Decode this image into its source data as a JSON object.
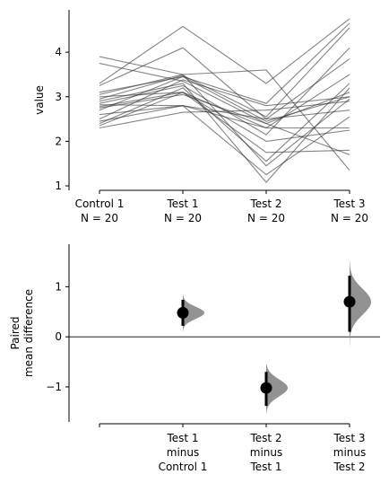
{
  "chart_data": [
    {
      "type": "line",
      "subtype": "paired-slopegraph",
      "ylabel": "value",
      "ylim": [
        0.9,
        4.95
      ],
      "yticks": [
        1,
        2,
        3,
        4
      ],
      "groups": [
        {
          "label": "Control 1",
          "n_label": "N = 20"
        },
        {
          "label": "Test 1",
          "n_label": "N = 20"
        },
        {
          "label": "Test 2",
          "n_label": "N = 20"
        },
        {
          "label": "Test 3",
          "n_label": "N = 20"
        }
      ],
      "line_color": "#333333",
      "series": [
        {
          "values": [
            3.9,
            3.5,
            3.6,
            1.35
          ]
        },
        {
          "values": [
            3.75,
            3.35,
            2.4,
            1.7
          ]
        },
        {
          "values": [
            3.3,
            4.58,
            3.3,
            4.75
          ]
        },
        {
          "values": [
            3.25,
            4.1,
            2.5,
            3.85
          ]
        },
        {
          "values": [
            3.1,
            3.45,
            2.85,
            4.65
          ]
        },
        {
          "values": [
            3.05,
            3.5,
            1.45,
            2.95
          ]
        },
        {
          "values": [
            3.0,
            3.1,
            2.3,
            3.5
          ]
        },
        {
          "values": [
            2.95,
            3.48,
            2.55,
            4.55
          ]
        },
        {
          "values": [
            2.9,
            3.3,
            1.08,
            3.2
          ]
        },
        {
          "values": [
            2.85,
            3.25,
            2.15,
            4.1
          ]
        },
        {
          "values": [
            2.82,
            2.8,
            2.5,
            2.7
          ]
        },
        {
          "values": [
            2.78,
            3.1,
            1.75,
            1.8
          ]
        },
        {
          "values": [
            2.75,
            3.05,
            2.4,
            3.1
          ]
        },
        {
          "values": [
            2.7,
            3.45,
            2.45,
            3.0
          ]
        },
        {
          "values": [
            2.6,
            2.8,
            2.3,
            2.3
          ]
        },
        {
          "values": [
            2.5,
            3.38,
            2.8,
            3.0
          ]
        },
        {
          "values": [
            2.45,
            2.8,
            1.25,
            2.55
          ]
        },
        {
          "values": [
            2.4,
            3.2,
            1.55,
            3.3
          ]
        },
        {
          "values": [
            2.35,
            3.1,
            2.0,
            2.25
          ]
        },
        {
          "values": [
            2.3,
            2.65,
            2.7,
            2.9
          ]
        }
      ]
    },
    {
      "type": "scatter",
      "subtype": "paired-mean-difference",
      "ylabel": [
        "Paired",
        "mean difference"
      ],
      "ylim": [
        -1.7,
        1.85
      ],
      "yticks": [
        -1,
        0,
        1
      ],
      "ytick_labels": [
        "−1",
        "0",
        "1"
      ],
      "reference_line": 0,
      "x_tick_labels": [
        {
          "lines": [
            ""
          ]
        },
        {
          "lines": [
            "Test 1",
            "minus",
            "Control 1"
          ]
        },
        {
          "lines": [
            "Test 2",
            "minus",
            "Test 1"
          ]
        },
        {
          "lines": [
            "Test 3",
            "minus",
            "Test 2"
          ]
        }
      ],
      "distribution_color": "#7f7f7f",
      "point_color": "#000000",
      "comparisons": [
        {
          "position": 1,
          "mean": 0.48,
          "ci": [
            0.22,
            0.74
          ],
          "dist_range": [
            0.1,
            0.85
          ],
          "dist_sd": 0.12,
          "dist_width": 0.25
        },
        {
          "position": 2,
          "mean": -1.02,
          "ci": [
            -1.38,
            -0.7
          ],
          "dist_range": [
            -1.52,
            -0.55
          ],
          "dist_sd": 0.17,
          "dist_width": 0.25
        },
        {
          "position": 3,
          "mean": 0.7,
          "ci": [
            0.1,
            1.22
          ],
          "dist_range": [
            -0.35,
            1.55
          ],
          "dist_sd": 0.26,
          "dist_width": 0.25
        }
      ]
    }
  ]
}
